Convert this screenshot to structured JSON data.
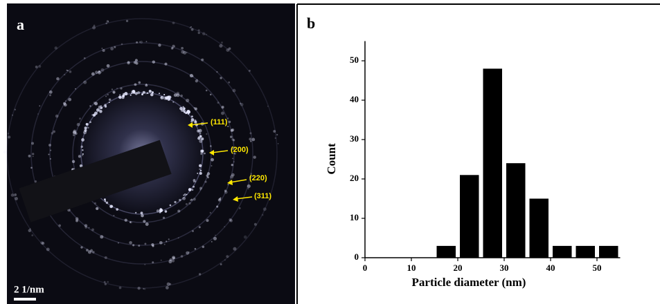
{
  "panel_a": {
    "label": "a",
    "annotations": [
      "(111)",
      "(200)",
      "(220)",
      "(311)"
    ],
    "scale_bar": "2 1/nm"
  },
  "chart_data": {
    "type": "histogram",
    "panel_label": "b",
    "x_label": "Particle diameter (nm)",
    "y_label": "Count",
    "bins": [
      15,
      20,
      25,
      30,
      35,
      40,
      45,
      50,
      55
    ],
    "values": [
      3,
      21,
      48,
      24,
      15,
      3,
      3,
      3
    ],
    "color": "#000000",
    "xlim": [
      0,
      55
    ],
    "ylim": [
      0,
      55
    ],
    "xticks": [
      0,
      10,
      20,
      30,
      40,
      50
    ],
    "yticks": [
      0,
      10,
      20,
      30,
      40,
      50
    ]
  }
}
